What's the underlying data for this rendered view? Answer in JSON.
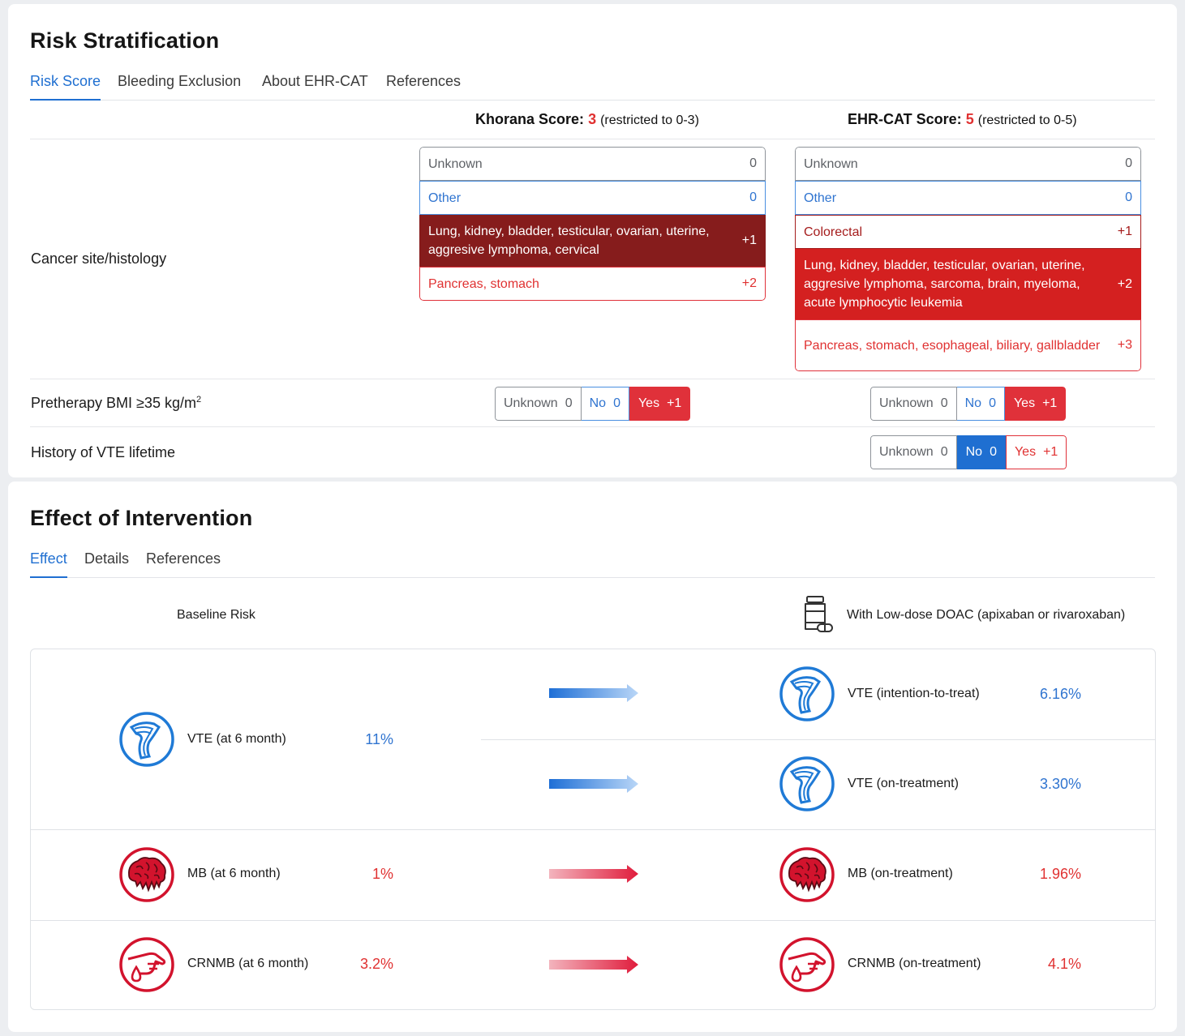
{
  "risk": {
    "title": "Risk Stratification",
    "tabs": [
      "Risk Score",
      "Bleeding Exclusion",
      "About EHR-CAT",
      "References"
    ],
    "khorana": {
      "label": "Khorana Score:",
      "value": "3",
      "note": "(restricted to 0-3)"
    },
    "ehrcat": {
      "label": "EHR-CAT Score:",
      "value": "5",
      "note": "(restricted to 0-5)"
    },
    "rows": {
      "cancer": "Cancer site/histology",
      "bmi": "Pretherapy BMI ≥35 kg/m",
      "bmi_sup": "2",
      "vte": "History of VTE lifetime"
    },
    "khorana_cancer": [
      {
        "text": "Unknown",
        "pts": "0"
      },
      {
        "text": "Other",
        "pts": "0"
      },
      {
        "text": "Lung, kidney, bladder, testicular, ovarian, uterine, aggresive lymphoma, cervical",
        "pts": "+1"
      },
      {
        "text": "Pancreas, stomach",
        "pts": "+2"
      }
    ],
    "ehrcat_cancer": [
      {
        "text": "Unknown",
        "pts": "0"
      },
      {
        "text": "Other",
        "pts": "0"
      },
      {
        "text": "Colorectal",
        "pts": "+1"
      },
      {
        "text": "Lung, kidney, bladder, testicular, ovarian, uterine, aggresive lymphoma, sarcoma, brain, myeloma, acute lymphocytic leukemia",
        "pts": "+2"
      },
      {
        "text": "Pancreas, stomach, esophageal, biliary, gallbladder",
        "pts": "+3"
      }
    ],
    "seg": {
      "unknown": "Unknown",
      "unknown_pts": "0",
      "no": "No",
      "no_pts": "0",
      "yes": "Yes",
      "yes_pts": "+1"
    }
  },
  "effect": {
    "title": "Effect of Intervention",
    "tabs": [
      "Effect",
      "Details",
      "References"
    ],
    "baseline_head": "Baseline Risk",
    "doac_head": "With Low-dose DOAC (apixaban or rivaroxaban)",
    "baseline": [
      {
        "label": "VTE (at 6 month)",
        "value": "11%",
        "icon": "vein-icon"
      },
      {
        "label": "MB (at 6 month)",
        "value": "1%",
        "icon": "bleeding-brain-icon"
      },
      {
        "label": "CRNMB (at 6 month)",
        "value": "3.2%",
        "icon": "hand-bleeding-icon"
      }
    ],
    "treated": [
      {
        "label": "VTE (intention-to-treat)",
        "value": "6.16%",
        "icon": "vein-icon"
      },
      {
        "label": "VTE (on-treatment)",
        "value": "3.30%",
        "icon": "vein-icon"
      },
      {
        "label": "MB (on-treatment)",
        "value": "1.96%",
        "icon": "bleeding-brain-icon"
      },
      {
        "label": "CRNMB (on-treatment)",
        "value": "4.1%",
        "icon": "hand-bleeding-icon"
      }
    ],
    "colors": {
      "blue": "#1f6fd1",
      "red": "#e0313a",
      "dark_red": "#861c1c"
    }
  }
}
